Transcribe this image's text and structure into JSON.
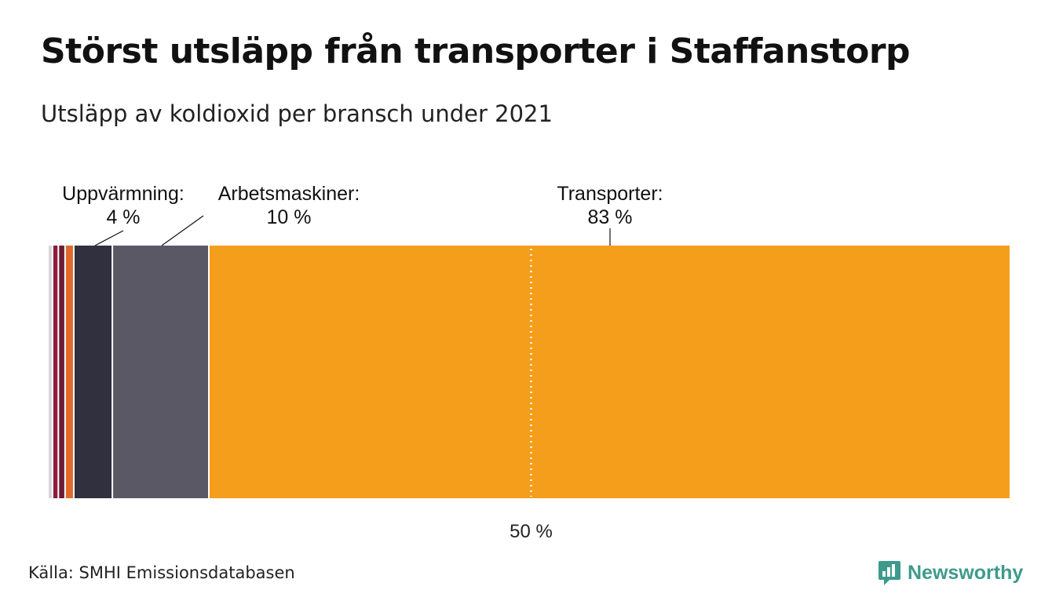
{
  "title": "Störst utsläpp från transporter i Staffanstorp",
  "subtitle": "Utsläpp av koldioxid per bransch under 2021",
  "source": "Källa: SMHI Emissionsdatabasen",
  "brand": {
    "name": "Newsworthy",
    "icon": "newsworthy-chart-bubble-icon"
  },
  "chart_data": {
    "type": "stacked-bar-100",
    "unit": "%",
    "segments": [
      {
        "name": "",
        "value": 0.4,
        "color": "#d9d6da"
      },
      {
        "name": "",
        "value": 0.6,
        "color": "#8e1c3a"
      },
      {
        "name": "",
        "value": 0.7,
        "color": "#6e1c33"
      },
      {
        "name": "",
        "value": 0.9,
        "color": "#e06a2c"
      },
      {
        "name": "Uppvärmning",
        "value": 4,
        "color": "#31303f"
      },
      {
        "name": "Arbetsmaskiner",
        "value": 10,
        "color": "#5b5866"
      },
      {
        "name": "Transporter",
        "value": 83,
        "color": "#f59e1b"
      }
    ],
    "labels": [
      {
        "name": "Uppvärmning:",
        "value": "4 %",
        "segment": 4
      },
      {
        "name": "Arbetsmaskiner:",
        "value": "10 %",
        "segment": 5
      },
      {
        "name": "Transporter:",
        "value": "83 %",
        "segment": 6
      }
    ],
    "reference_line": {
      "value": 50,
      "label": "50 %"
    }
  }
}
